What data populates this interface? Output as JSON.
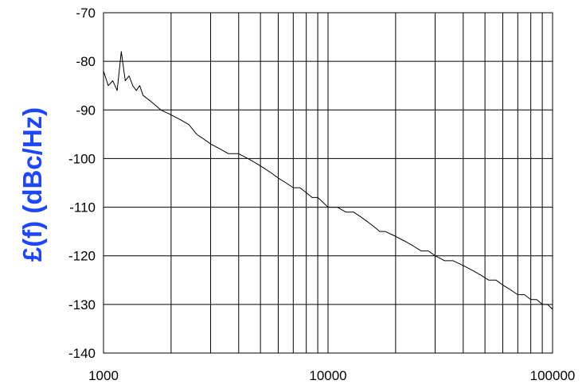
{
  "chart_data": {
    "type": "line",
    "title": "",
    "xlabel": "",
    "ylabel": "£(f) (dBc/Hz)",
    "x_scale": "log",
    "xlim": [
      1000,
      100000
    ],
    "ylim": [
      -140,
      -70
    ],
    "grid": true,
    "x_tick_labels": [
      "1000",
      "10000",
      "100000"
    ],
    "y_tick_labels": [
      "-70",
      "-80",
      "-90",
      "-100",
      "-110",
      "-120",
      "-130",
      "-140"
    ],
    "series": [
      {
        "color": "#000000",
        "x": [
          1000,
          1050,
          1100,
          1150,
          1200,
          1250,
          1300,
          1350,
          1400,
          1450,
          1500,
          1600,
          1700,
          1800,
          2000,
          2200,
          2400,
          2600,
          2800,
          3000,
          3300,
          3600,
          4000,
          4400,
          4800,
          5200,
          5600,
          6000,
          6500,
          7000,
          7500,
          8000,
          8500,
          9000,
          9500,
          10000,
          11000,
          12000,
          13000,
          14000,
          15000,
          16000,
          17000,
          18000,
          20000,
          22000,
          24000,
          26000,
          28000,
          30000,
          33000,
          36000,
          40000,
          44000,
          48000,
          52000,
          56000,
          60000,
          65000,
          70000,
          75000,
          80000,
          85000,
          90000,
          95000,
          100000
        ],
        "y": [
          -82,
          -85,
          -84,
          -86,
          -78,
          -84,
          -83,
          -85,
          -86,
          -85,
          -87,
          -88,
          -89,
          -90,
          -91,
          -92,
          -93,
          -95,
          -96,
          -97,
          -98,
          -99,
          -99,
          -100,
          -101,
          -102,
          -103,
          -104,
          -105,
          -106,
          -106,
          -107,
          -108,
          -108,
          -109,
          -110,
          -110,
          -111,
          -111,
          -112,
          -113,
          -114,
          -115,
          -115,
          -116,
          -117,
          -118,
          -119,
          -119,
          -120,
          -121,
          -121,
          -122,
          -123,
          -124,
          -125,
          -125,
          -126,
          -127,
          -128,
          -128,
          -129,
          -129,
          -130,
          -130,
          -131
        ]
      }
    ]
  }
}
